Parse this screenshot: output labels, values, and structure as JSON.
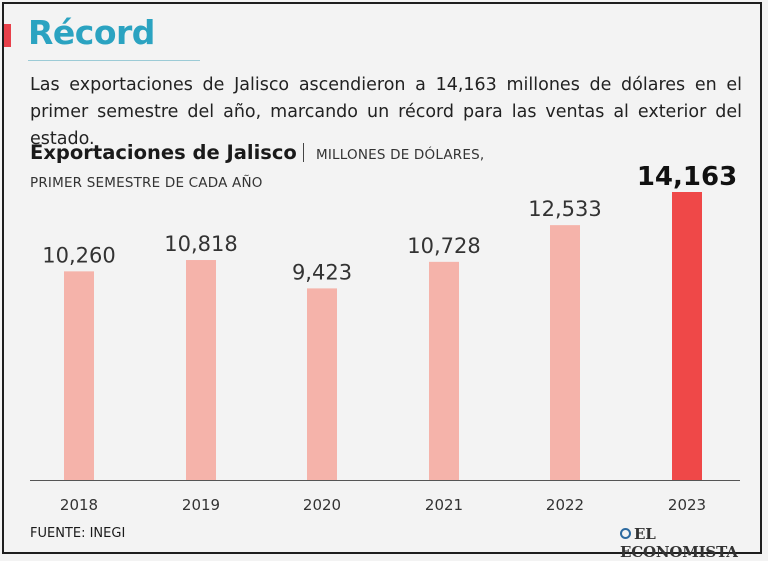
{
  "header": {
    "title": "Récord",
    "intro": "Las exportaciones de Jalisco ascendieron a 14,163 millones de dólares en el primer semestre del año, marcando un récord para las ventas al exterior del estado."
  },
  "chart_data": {
    "type": "bar",
    "title": "Exportaciones de Jalisco",
    "units_line1": "MILLONES DE DÓLARES,",
    "units_line2": "PRIMER SEMESTRE DE CADA AÑO",
    "categories": [
      "2018",
      "2019",
      "2020",
      "2021",
      "2022",
      "2023"
    ],
    "values": [
      10260,
      10818,
      9423,
      10728,
      12533,
      14163
    ],
    "labels": [
      "10,260",
      "10,818",
      "9,423",
      "10,728",
      "12,533",
      "14,163"
    ],
    "highlight_index": 5,
    "ylim": [
      0,
      14163
    ],
    "grid": false,
    "xlabel": "",
    "ylabel": ""
  },
  "footer": {
    "source": "FUENTE: INEGI",
    "brand": "EL ECONOMISTA"
  },
  "colors": {
    "accent": "#e8404a",
    "title": "#2ba3c1",
    "bar": "#f5b3aa",
    "bar_highlight": "#ef4848",
    "label": "#333333",
    "label_highlight": "#111111",
    "axis": "#555555"
  }
}
